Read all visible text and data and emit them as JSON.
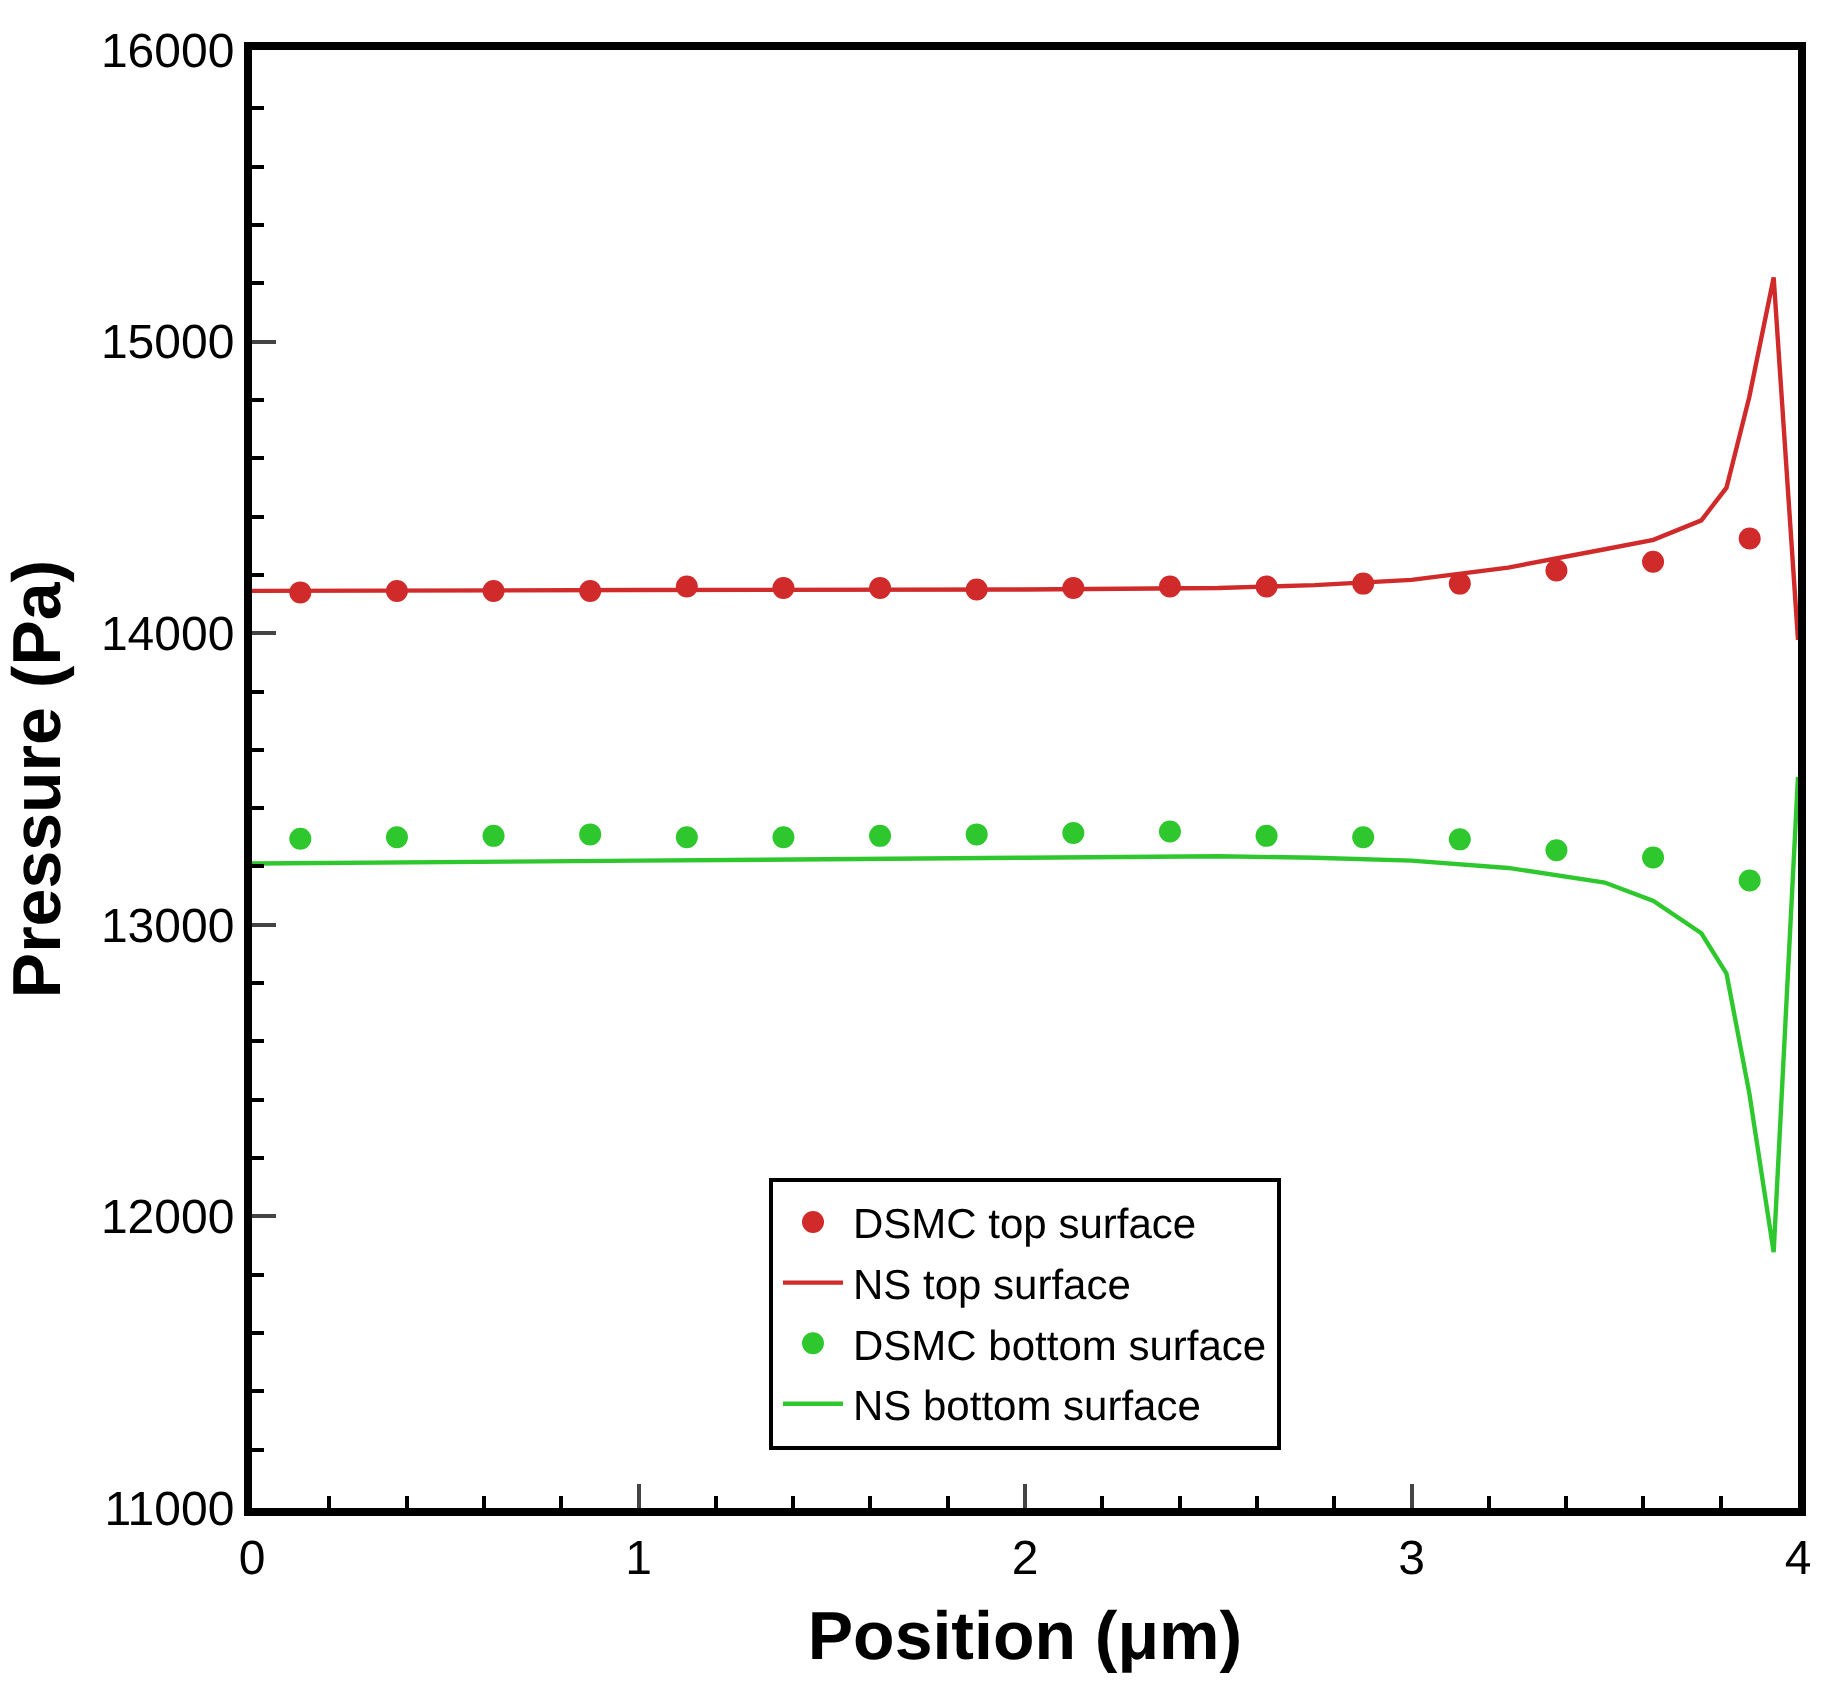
{
  "chart_data": {
    "type": "line",
    "xlabel": "Position (μm)",
    "ylabel": "Pressure (Pa)",
    "xlim": [
      0,
      4
    ],
    "xticks": [
      0,
      1,
      2,
      3,
      4
    ],
    "ylim": [
      11000,
      16000
    ],
    "yticks": [
      11000,
      12000,
      13000,
      14000,
      15000,
      16000
    ],
    "legend": "bottom",
    "series": [
      {
        "name": "DSMC top surface",
        "type": "scatter",
        "marker": "circle",
        "color": "#d02a2a",
        "x": [
          0.125,
          0.375,
          0.625,
          0.875,
          1.125,
          1.375,
          1.625,
          1.875,
          2.125,
          2.375,
          2.625,
          2.875,
          3.125,
          3.375,
          3.625,
          3.875
        ],
        "values": [
          14140,
          14145,
          14145,
          14145,
          14160,
          14155,
          14155,
          14150,
          14155,
          14160,
          14160,
          14170,
          14170,
          14215,
          14245,
          14325
        ]
      },
      {
        "name": "NS top surface",
        "color": "#d02a2a",
        "x": [
          0,
          1,
          2,
          2.5,
          2.75,
          3,
          3.25,
          3.5,
          3.626,
          3.75,
          3.815,
          3.874,
          3.937,
          4
        ],
        "values": [
          14145,
          14148,
          14150,
          14155,
          14165,
          14183,
          14225,
          14288,
          14320,
          14387,
          14499,
          14810,
          15220,
          13977
        ]
      },
      {
        "name": "DSMC bottom surface",
        "type": "scatter",
        "marker": "circle",
        "color": "#2ec82e",
        "x": [
          0.125,
          0.375,
          0.625,
          0.875,
          1.125,
          1.375,
          1.625,
          1.875,
          2.125,
          2.375,
          2.625,
          2.875,
          3.125,
          3.375,
          3.625,
          3.875
        ],
        "values": [
          13295,
          13300,
          13305,
          13310,
          13300,
          13300,
          13305,
          13310,
          13315,
          13320,
          13305,
          13300,
          13293,
          13256,
          13231,
          13152
        ]
      },
      {
        "name": "NS bottom surface",
        "color": "#2ec82e",
        "x": [
          0,
          1,
          2,
          2.5,
          2.75,
          3,
          3.25,
          3.5,
          3.626,
          3.75,
          3.815,
          3.874,
          3.937,
          4
        ],
        "values": [
          13210,
          13220,
          13230,
          13235,
          13230,
          13220,
          13195,
          13145,
          13082,
          12971,
          12833,
          12423,
          11877,
          13507
        ]
      }
    ]
  }
}
